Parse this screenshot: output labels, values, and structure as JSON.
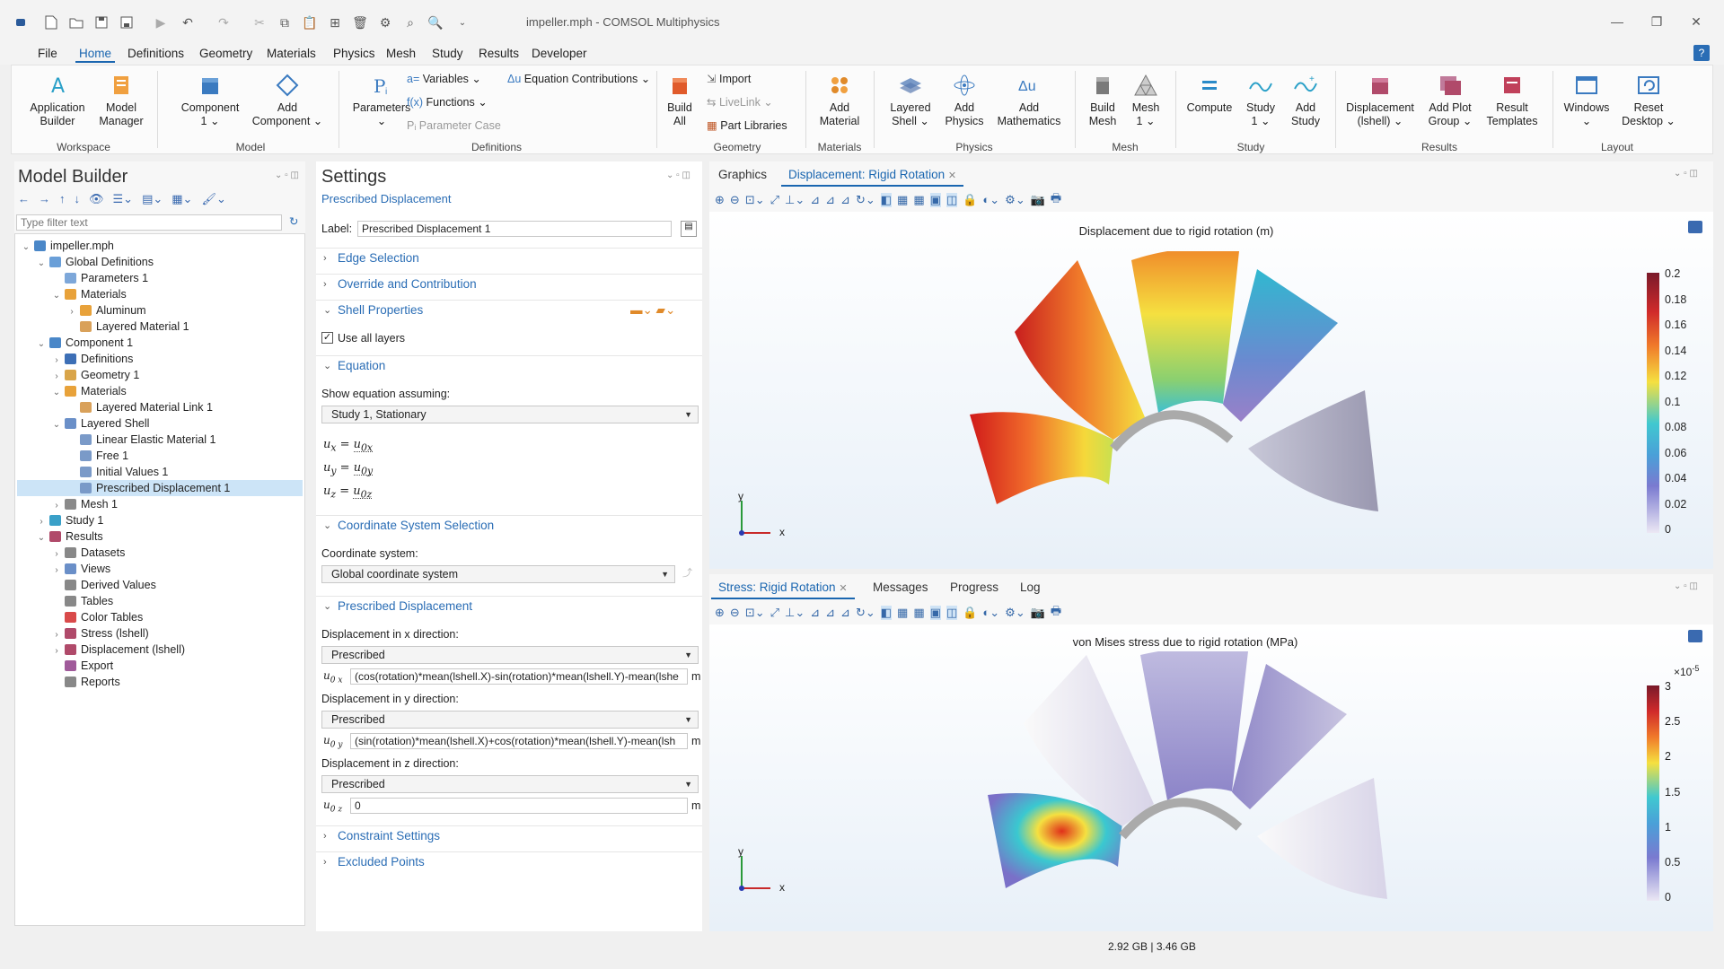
{
  "window": {
    "title": "impeller.mph - COMSOL Multiphysics",
    "help": "?"
  },
  "menu": [
    "File",
    "Home",
    "Definitions",
    "Geometry",
    "Materials",
    "Physics",
    "Mesh",
    "Study",
    "Results",
    "Developer"
  ],
  "ribbon": {
    "app_builder": "Application\nBuilder",
    "model_manager": "Model\nManager",
    "component": "Component\n1 ⌄",
    "add_component": "Add\nComponent ⌄",
    "parameters": "Parameters\n⌄",
    "variables": "Variables ⌄",
    "functions": "Functions ⌄",
    "parameter_case": "Parameter Case",
    "equation_contributions": "Equation Contributions ⌄",
    "build_all": "Build\nAll",
    "import": "Import",
    "livelink": "LiveLink ⌄",
    "part_libraries": "Part Libraries",
    "add_material": "Add\nMaterial",
    "layered_shell": "Layered\nShell ⌄",
    "add_physics": "Add\nPhysics",
    "add_math": "Add\nMathematics",
    "build_mesh": "Build\nMesh",
    "mesh1": "Mesh\n1 ⌄",
    "compute": "Compute",
    "study1": "Study\n1 ⌄",
    "add_study": "Add\nStudy",
    "displacement": "Displacement\n(lshell) ⌄",
    "add_plot_group": "Add Plot\nGroup ⌄",
    "result_templates": "Result\nTemplates",
    "windows": "Windows\n⌄",
    "reset_desktop": "Reset\nDesktop ⌄",
    "groups": [
      "Workspace",
      "Model",
      "Definitions",
      "Geometry",
      "Materials",
      "Physics",
      "Mesh",
      "Study",
      "Results",
      "Layout"
    ]
  },
  "model_builder": {
    "title": "Model Builder",
    "filter_placeholder": "Type filter text",
    "tree": [
      {
        "label": "impeller.mph",
        "level": 0,
        "exp": "⌄",
        "color": "#4a87c8"
      },
      {
        "label": "Global Definitions",
        "level": 1,
        "exp": "⌄",
        "color": "#6a9fd8"
      },
      {
        "label": "Parameters 1",
        "level": 2,
        "exp": "",
        "color": "#7da7d9"
      },
      {
        "label": "Materials",
        "level": 2,
        "exp": "⌄",
        "color": "#e8a23a"
      },
      {
        "label": "Aluminum",
        "level": 3,
        "exp": "›",
        "color": "#e8a23a"
      },
      {
        "label": "Layered Material 1",
        "level": 3,
        "exp": "",
        "color": "#d9a15a"
      },
      {
        "label": "Component 1",
        "level": 1,
        "exp": "⌄",
        "color": "#4a87c8"
      },
      {
        "label": "Definitions",
        "level": 2,
        "exp": "›",
        "color": "#3d6fb6"
      },
      {
        "label": "Geometry 1",
        "level": 2,
        "exp": "›",
        "color": "#d9a54a"
      },
      {
        "label": "Materials",
        "level": 2,
        "exp": "⌄",
        "color": "#e8a23a"
      },
      {
        "label": "Layered Material Link 1",
        "level": 3,
        "exp": "",
        "color": "#d9a15a"
      },
      {
        "label": "Layered Shell",
        "level": 2,
        "exp": "⌄",
        "color": "#6a8fc8"
      },
      {
        "label": "Linear Elastic Material 1",
        "level": 3,
        "exp": "",
        "color": "#7a9ac8"
      },
      {
        "label": "Free 1",
        "level": 3,
        "exp": "",
        "color": "#7a9ac8"
      },
      {
        "label": "Initial Values 1",
        "level": 3,
        "exp": "",
        "color": "#7a9ac8"
      },
      {
        "label": "Prescribed Displacement 1",
        "level": 3,
        "exp": "",
        "color": "#7a9ac8",
        "selected": true
      },
      {
        "label": "Mesh 1",
        "level": 2,
        "exp": "›",
        "color": "#8a8a8a"
      },
      {
        "label": "Study 1",
        "level": 1,
        "exp": "›",
        "color": "#3aa0c8"
      },
      {
        "label": "Results",
        "level": 1,
        "exp": "⌄",
        "color": "#b04a6a"
      },
      {
        "label": "Datasets",
        "level": 2,
        "exp": "›",
        "color": "#888"
      },
      {
        "label": "Views",
        "level": 2,
        "exp": "›",
        "color": "#6a8fc8"
      },
      {
        "label": "Derived Values",
        "level": 2,
        "exp": "",
        "color": "#888"
      },
      {
        "label": "Tables",
        "level": 2,
        "exp": "",
        "color": "#888"
      },
      {
        "label": "Color Tables",
        "level": 2,
        "exp": "",
        "color": "#d94a4a"
      },
      {
        "label": "Stress (lshell)",
        "level": 2,
        "exp": "›",
        "color": "#b04a6a"
      },
      {
        "label": "Displacement (lshell)",
        "level": 2,
        "exp": "›",
        "color": "#b04a6a"
      },
      {
        "label": "Export",
        "level": 2,
        "exp": "",
        "color": "#a05a9a"
      },
      {
        "label": "Reports",
        "level": 2,
        "exp": "",
        "color": "#888"
      }
    ]
  },
  "settings": {
    "title": "Settings",
    "subtitle": "Prescribed Displacement",
    "label_caption": "Label:",
    "label_value": "Prescribed Displacement 1",
    "sections": {
      "edge_selection": "Edge Selection",
      "override": "Override and Contribution",
      "shell_properties": "Shell Properties",
      "equation": "Equation",
      "coord_sel": "Coordinate System Selection",
      "prescribed_disp": "Prescribed Displacement",
      "constraint": "Constraint Settings",
      "excluded": "Excluded Points"
    },
    "use_all_layers": "Use all layers",
    "show_eq_caption": "Show equation assuming:",
    "show_eq_value": "Study 1, Stationary",
    "eq": [
      "u",
      "x",
      "=",
      "u",
      "0x",
      "u",
      "y",
      "=",
      "u",
      "0y",
      "u",
      "z",
      "=",
      "u",
      "0z"
    ],
    "coord_caption": "Coordinate system:",
    "coord_value": "Global coordinate system",
    "disp_x_caption": "Displacement in x direction:",
    "disp_x_mode": "Prescribed",
    "u0x_label": "u",
    "u0x_sub": "0 x",
    "u0x_value": "(cos(rotation)*mean(lshell.X)-sin(rotation)*mean(lshell.Y)-mean(lshe",
    "disp_y_caption": "Displacement in y direction:",
    "disp_y_mode": "Prescribed",
    "u0y_sub": "0 y",
    "u0y_value": "(sin(rotation)*mean(lshell.X)+cos(rotation)*mean(lshell.Y)-mean(lsh",
    "disp_z_caption": "Displacement in z direction:",
    "disp_z_mode": "Prescribed",
    "u0z_sub": "0 z",
    "u0z_value": "0",
    "unit": "m"
  },
  "graphics_top": {
    "tabs": [
      "Graphics",
      "Displacement: Rigid Rotation"
    ],
    "plot_title": "Displacement due to rigid rotation (m)",
    "colorbar": [
      "0.2",
      "0.18",
      "0.16",
      "0.14",
      "0.12",
      "0.1",
      "0.08",
      "0.06",
      "0.04",
      "0.02",
      "0"
    ],
    "axis_x": "x",
    "axis_y": "y"
  },
  "graphics_bottom": {
    "tabs": [
      "Stress: Rigid Rotation",
      "Messages",
      "Progress",
      "Log"
    ],
    "plot_title": "von Mises stress due to rigid rotation (MPa)",
    "exponent": "×10",
    "exponent_power": "-5",
    "colorbar": [
      "3",
      "2.5",
      "2",
      "1.5",
      "1",
      "0.5",
      "0"
    ],
    "axis_x": "x",
    "axis_y": "y"
  },
  "status": {
    "memory": "2.92 GB | 3.46 GB"
  },
  "colors": {
    "accent": "#1a66b0",
    "link": "#2a6db5",
    "selected": "#cce4f7"
  }
}
